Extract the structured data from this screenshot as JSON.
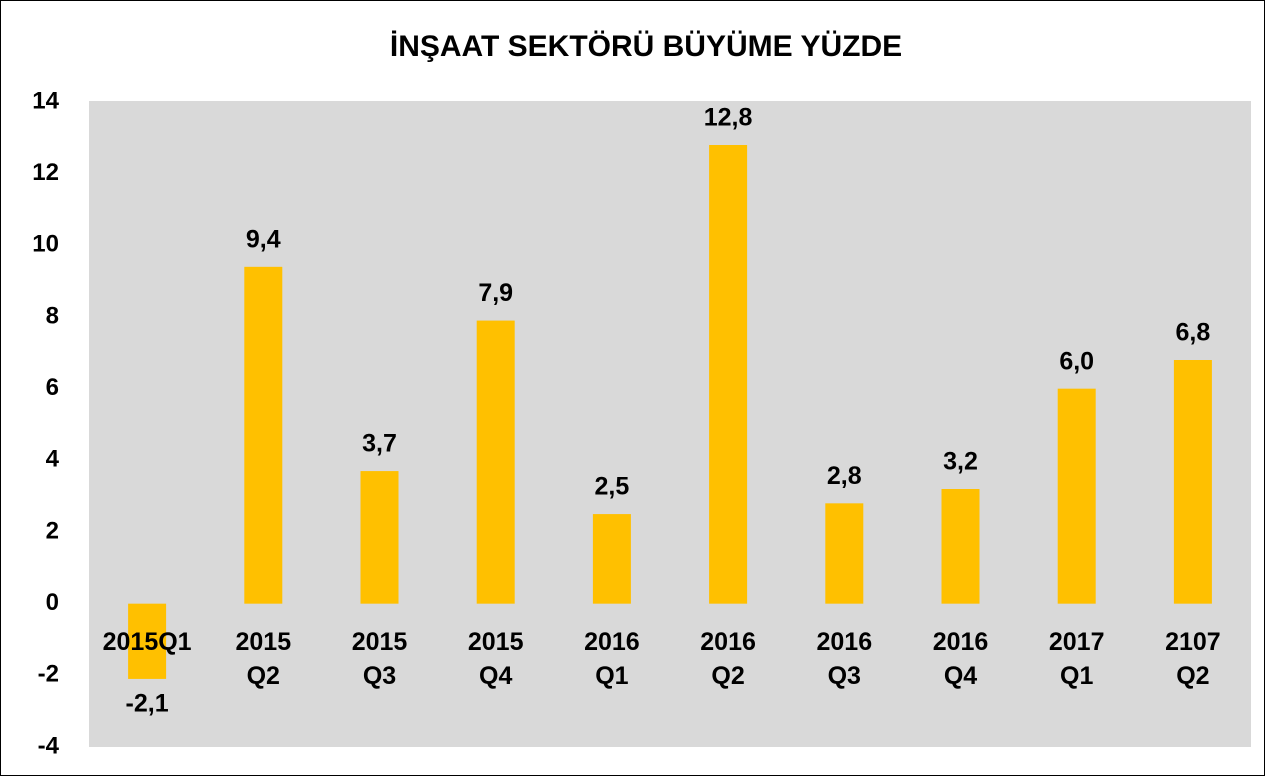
{
  "chart_data": {
    "type": "bar",
    "title": "İNŞAAT SEKTÖRÜ BÜYÜME YÜZDE",
    "categories": [
      "2015Q1",
      "2015 Q2",
      "2015 Q3",
      "2015 Q4",
      "2016 Q1",
      "2016 Q2",
      "2016 Q3",
      "2016 Q4",
      "2017 Q1",
      "2107 Q2"
    ],
    "values": [
      -2.1,
      9.4,
      3.7,
      7.9,
      2.5,
      12.8,
      2.8,
      3.2,
      6.0,
      6.8
    ],
    "value_labels": [
      "-2,1",
      "9,4",
      "3,7",
      "7,9",
      "2,5",
      "12,8",
      "2,8",
      "3,2",
      "6,0",
      "6,8"
    ],
    "color": "#ffc000",
    "ylim": [
      -4,
      14
    ],
    "yticks": [
      -4,
      -2,
      0,
      2,
      4,
      6,
      8,
      10,
      12,
      14
    ],
    "grid": false
  }
}
